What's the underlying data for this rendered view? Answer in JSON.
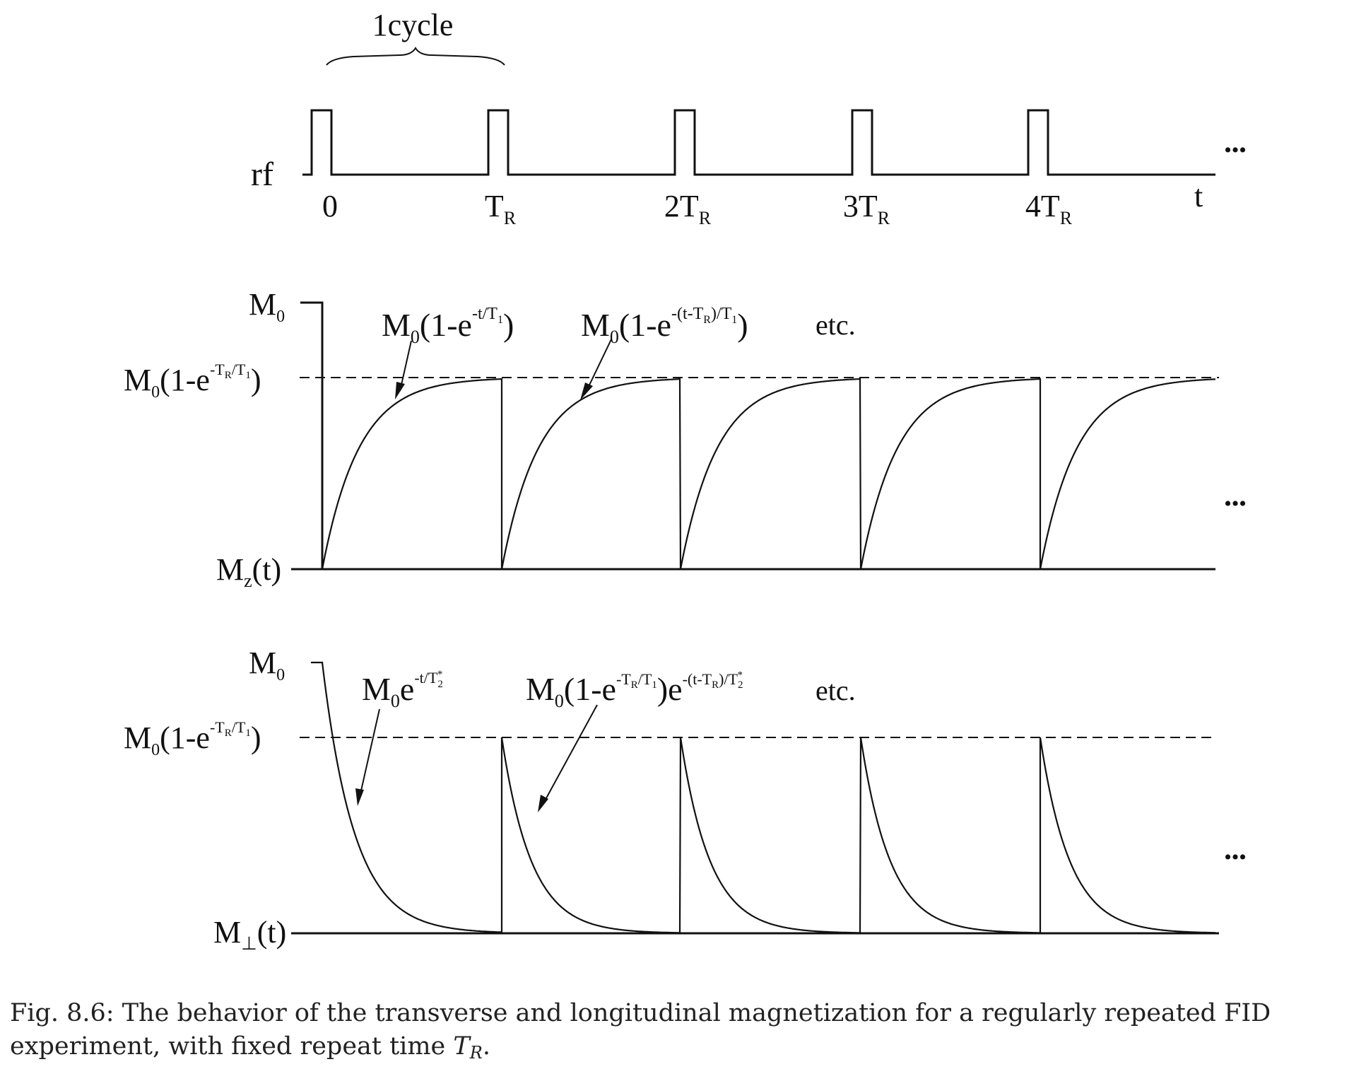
{
  "top": {
    "cycle_label": "1cycle",
    "axis_label": "rf",
    "time_label": "t",
    "ellipsis": "•••",
    "ticks": [
      {
        "main": "0",
        "sub": ""
      },
      {
        "main": "T",
        "sub": "R"
      },
      {
        "main": "2T",
        "sub": "R"
      },
      {
        "main": "3T",
        "sub": "R"
      },
      {
        "main": "4T",
        "sub": "R"
      }
    ]
  },
  "middle": {
    "ytop": {
      "main": "M",
      "sub": "0"
    },
    "yss": {
      "a": "M",
      "a_sub": "0",
      "b": "(1-e",
      "sup": "-T",
      "sup_sub": "R",
      "sup2": "/T",
      "sup2_sub": "1",
      "close": ")"
    },
    "ybottom": {
      "a": "M",
      "a_sub": "z",
      "b": "(t)"
    },
    "ann1": {
      "a": "M",
      "a_sub": "0",
      "b": "(1-e",
      "sup": "-t/T",
      "sup_sub": "1",
      "close": ")"
    },
    "ann2": {
      "a": "M",
      "a_sub": "0",
      "b": "(1-e",
      "sup": "-(t-T",
      "sup_sub": "R",
      "sup2": ")/T",
      "sup2_sub": "1",
      "close": ")"
    },
    "etc": "etc.",
    "ellipsis": "•••"
  },
  "bottom": {
    "ytop": {
      "main": "M",
      "sub": "0"
    },
    "yss": {
      "a": "M",
      "a_sub": "0",
      "b": "(1-e",
      "sup": "-T",
      "sup_sub": "R",
      "sup2": "/T",
      "sup2_sub": "1",
      "close": ")"
    },
    "ybottom": {
      "a": "M",
      "a_sub": "⊥",
      "b": "(t)"
    },
    "ann1": {
      "a": "M",
      "a_sub": "0",
      "b": "e",
      "sup": "-t/T",
      "sup_sub": "2",
      "sup_star": "*"
    },
    "ann2": {
      "a": "M",
      "a_sub": "0",
      "b": "(1-e",
      "sup": "-T",
      "sup_sub": "R",
      "sup2": "/T",
      "sup2_sub": "1",
      "close": ")e",
      "sup3": "-(t-T",
      "sup3_sub": "R",
      "sup4": ")/T",
      "sup4_sub": "2",
      "sup_star": "*"
    },
    "etc": "etc.",
    "ellipsis": "•••"
  },
  "caption": {
    "prefix": "Fig. 8.6: The behavior of the transverse and longitudinal magnetization for a regularly repeated FID experiment, with fixed repeat time ",
    "math": "T",
    "math_sub": "R",
    "suffix": "."
  }
}
